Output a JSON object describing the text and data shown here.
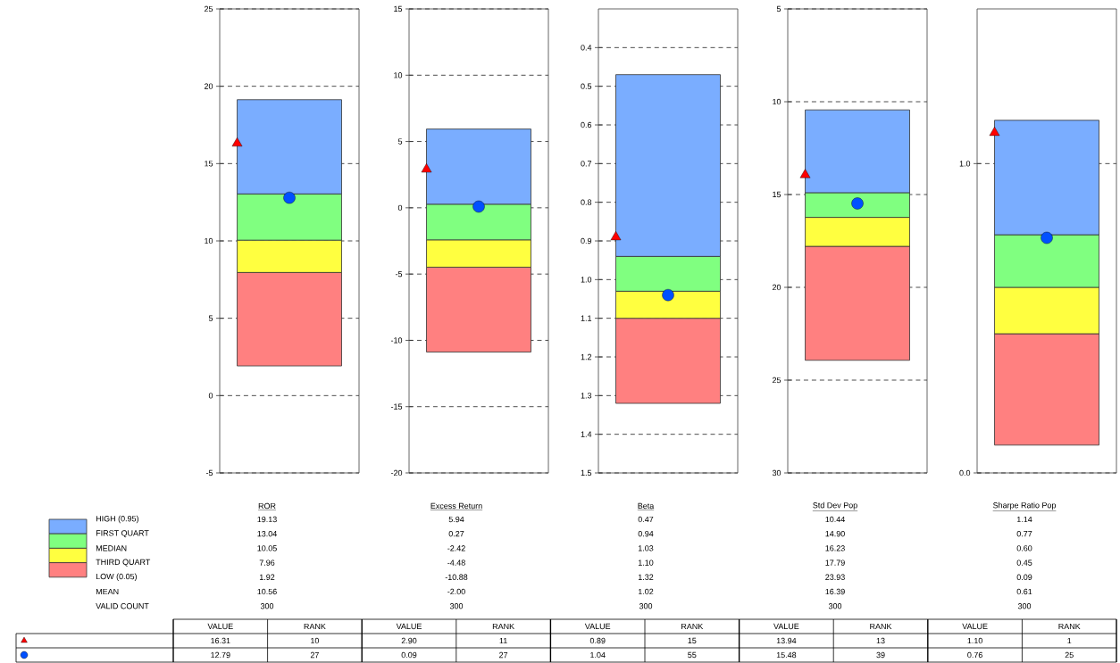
{
  "chart_data": [
    {
      "type": "bar",
      "xlabel": "ROR",
      "categories": [
        null
      ],
      "ylim": [
        -5,
        25
      ],
      "yticks": [
        -5,
        0,
        5,
        10,
        15,
        20,
        25
      ],
      "grid": "y",
      "annotations": [
        "19.13",
        "13.04",
        "10.05",
        "7.96",
        "1.92",
        "10.56",
        "300",
        "VALUE",
        "RANK",
        "16.31",
        "10",
        "12.79",
        "27"
      ],
      "series": [
        {
          "color": "#ff8080",
          "base": [
            1.92
          ],
          "values": [
            6.04
          ]
        },
        {
          "color": "#ffff40",
          "base": [
            7.96
          ],
          "values": [
            2.09
          ]
        },
        {
          "color": "#80ff80",
          "base": [
            10.05
          ],
          "values": [
            2.99
          ]
        },
        {
          "color": "#7aadff",
          "base": [
            13.04
          ],
          "values": [
            6.09
          ]
        },
        {
          "type": "scatter",
          "color": "#ff0000",
          "marker": "triangle",
          "values": [
            16.31
          ]
        },
        {
          "type": "scatter",
          "color": "#0050ff",
          "marker": "circle",
          "values": [
            12.79
          ]
        }
      ]
    },
    {
      "type": "bar",
      "xlabel": "Excess Return",
      "categories": [
        null
      ],
      "ylim": [
        -20,
        15
      ],
      "yticks": [
        -20,
        -15,
        -10,
        -5,
        0,
        5,
        10,
        15
      ],
      "grid": "y",
      "annotations": [
        "5.94",
        "0.27",
        "-2.42",
        "-4.48",
        "-10.88",
        "-2.00",
        "300",
        "VALUE",
        "RANK",
        "2.90",
        "11",
        "0.09",
        "27"
      ],
      "series": [
        {
          "color": "#ff8080",
          "base": [
            -10.88
          ],
          "values": [
            6.4
          ]
        },
        {
          "color": "#ffff40",
          "base": [
            -4.48
          ],
          "values": [
            2.06
          ]
        },
        {
          "color": "#80ff80",
          "base": [
            -2.42
          ],
          "values": [
            2.69
          ]
        },
        {
          "color": "#7aadff",
          "base": [
            0.27
          ],
          "values": [
            5.67
          ]
        },
        {
          "type": "scatter",
          "color": "#ff0000",
          "marker": "triangle",
          "values": [
            2.9
          ]
        },
        {
          "type": "scatter",
          "color": "#0050ff",
          "marker": "circle",
          "values": [
            0.09
          ]
        }
      ]
    },
    {
      "type": "bar",
      "xlabel": "Beta",
      "categories": [
        null
      ],
      "ylim": [
        1.5,
        0.3
      ],
      "yticks": [
        {
          "value": 0.4,
          "label": "0.4"
        },
        {
          "value": 0.5,
          "label": "0.5"
        },
        {
          "value": 0.6,
          "label": "0.6"
        },
        {
          "value": 0.7,
          "label": "0.7"
        },
        {
          "value": 0.8,
          "label": "0.8"
        },
        {
          "value": 0.9,
          "label": "0.9"
        },
        {
          "value": 1.0,
          "label": "1.0"
        },
        {
          "value": 1.1,
          "label": "1.1"
        },
        {
          "value": 1.2,
          "label": "1.2"
        },
        {
          "value": 1.3,
          "label": "1.3"
        },
        {
          "value": 1.4,
          "label": "1.4"
        },
        {
          "value": 1.5,
          "label": "1.5"
        }
      ],
      "grid": "y",
      "annotations": [
        "0.47",
        "0.94",
        "1.03",
        "1.10",
        "1.32",
        "1.02",
        "300",
        "VALUE",
        "RANK",
        "0.89",
        "15",
        "1.04",
        "55"
      ],
      "series": [
        {
          "color": "#ff8080",
          "base": [
            1.1
          ],
          "values": [
            0.22
          ]
        },
        {
          "color": "#ffff40",
          "base": [
            1.03
          ],
          "values": [
            0.07
          ]
        },
        {
          "color": "#80ff80",
          "base": [
            0.94
          ],
          "values": [
            0.09
          ]
        },
        {
          "color": "#7aadff",
          "base": [
            0.47
          ],
          "values": [
            0.47
          ]
        },
        {
          "type": "scatter",
          "color": "#ff0000",
          "marker": "triangle",
          "values": [
            0.89
          ]
        },
        {
          "type": "scatter",
          "color": "#0050ff",
          "marker": "circle",
          "values": [
            1.04
          ]
        }
      ]
    },
    {
      "type": "bar",
      "xlabel": "Std Dev Pop",
      "categories": [
        null
      ],
      "ylim": [
        30,
        5
      ],
      "yticks": [
        5,
        10,
        15,
        20,
        25,
        30
      ],
      "grid": "y",
      "annotations": [
        "10.44",
        "14.90",
        "16.23",
        "17.79",
        "23.93",
        "16.39",
        "300",
        "VALUE",
        "RANK",
        "13.94",
        "13",
        "15.48",
        "39"
      ],
      "series": [
        {
          "color": "#ff8080",
          "base": [
            17.79
          ],
          "values": [
            6.14
          ]
        },
        {
          "color": "#ffff40",
          "base": [
            16.23
          ],
          "values": [
            1.56
          ]
        },
        {
          "color": "#80ff80",
          "base": [
            14.9
          ],
          "values": [
            1.33
          ]
        },
        {
          "color": "#7aadff",
          "base": [
            10.44
          ],
          "values": [
            4.46
          ]
        },
        {
          "type": "scatter",
          "color": "#ff0000",
          "marker": "triangle",
          "values": [
            13.94
          ]
        },
        {
          "type": "scatter",
          "color": "#0050ff",
          "marker": "circle",
          "values": [
            15.48
          ]
        }
      ]
    },
    {
      "type": "bar",
      "xlabel": "Sharpe Ratio Pop",
      "categories": [
        null
      ],
      "ylim": [
        0,
        1.5
      ],
      "yticks": [
        {
          "value": 0,
          "label": "0.0"
        },
        {
          "value": 1,
          "label": "1.0"
        }
      ],
      "grid": "y",
      "annotations": [
        "1.14",
        "0.77",
        "0.60",
        "0.45",
        "0.09",
        "0.61",
        "300",
        "VALUE",
        "RANK",
        "1.10",
        "1",
        "0.76",
        "25"
      ],
      "series": [
        {
          "color": "#ff8080",
          "base": [
            0.09
          ],
          "values": [
            0.36
          ]
        },
        {
          "color": "#ffff40",
          "base": [
            0.45
          ],
          "values": [
            0.15
          ]
        },
        {
          "color": "#80ff80",
          "base": [
            0.6
          ],
          "values": [
            0.17
          ]
        },
        {
          "color": "#7aadff",
          "base": [
            0.77
          ],
          "values": [
            0.37
          ]
        },
        {
          "type": "scatter",
          "color": "#ff0000",
          "marker": "triangle",
          "values": [
            1.1
          ]
        },
        {
          "type": "scatter",
          "color": "#0050ff",
          "marker": "circle",
          "values": [
            0.76
          ]
        }
      ]
    },
    {
      "type": "other",
      "annotations": [
        "HIGH (0.95)",
        "FIRST QUART",
        "MEDIAN",
        "THIRD QUART",
        "LOW (0.05)",
        "MEAN",
        "VALID COUNT"
      ],
      "colors": [
        "#7aadff",
        "#80ff80",
        "#ffff40",
        "#ff8080"
      ]
    }
  ]
}
